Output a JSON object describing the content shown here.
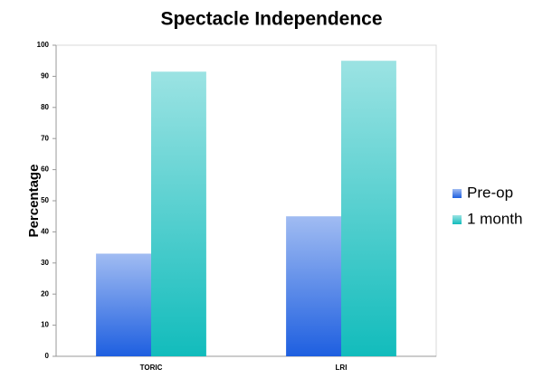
{
  "chart_data": {
    "type": "bar",
    "title": "Spectacle Independence",
    "y_label": "Percentage",
    "categories": [
      "TORIC",
      "LRI"
    ],
    "series": [
      {
        "name": "Pre-op",
        "color": "#1e5fe0",
        "values": [
          33,
          45
        ]
      },
      {
        "name": "1 month",
        "color": "#12bcbc",
        "values": [
          91.5,
          95
        ]
      }
    ],
    "ylim": [
      0,
      100
    ],
    "yticks": [
      0,
      10,
      20,
      30,
      40,
      50,
      60,
      70,
      80,
      90,
      100
    ],
    "grid": false,
    "legend": "right"
  }
}
